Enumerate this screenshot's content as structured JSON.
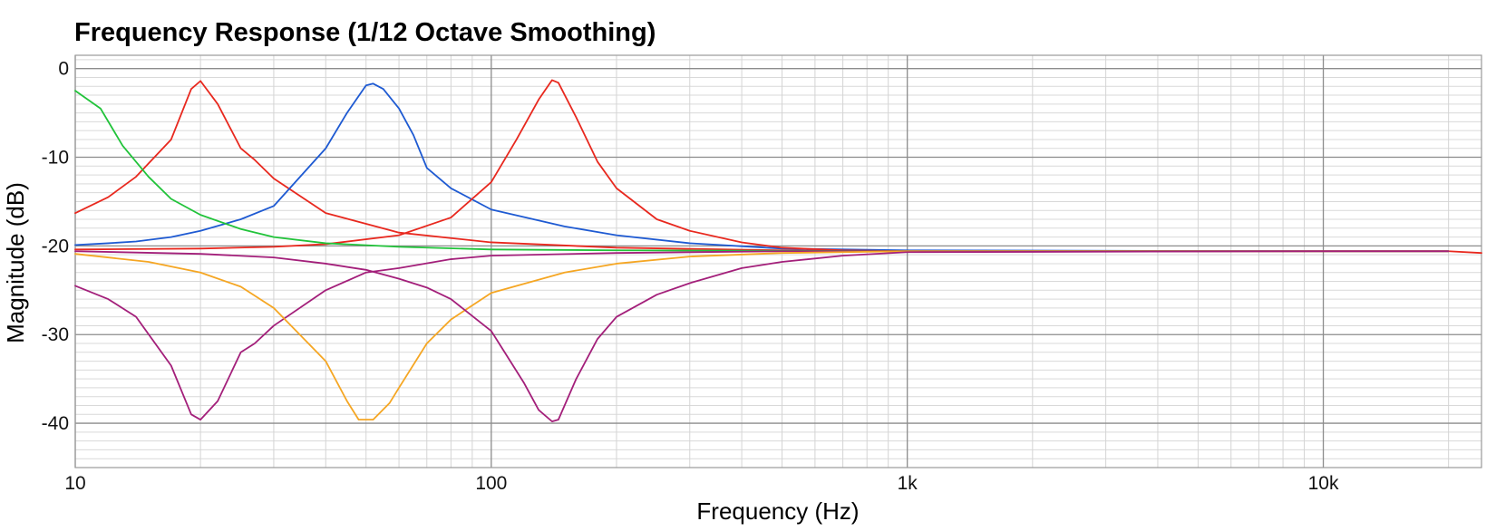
{
  "chart_data": {
    "type": "line",
    "title": "Frequency Response (1/12 Octave Smoothing)",
    "xlabel": "Frequency (Hz)",
    "ylabel": "Magnitude (dB)",
    "xscale": "log",
    "xlim": [
      10,
      24000
    ],
    "ylim": [
      -45,
      1.5
    ],
    "grid": true,
    "legend": "none",
    "x_ticks": [
      {
        "value": 10,
        "label": "10"
      },
      {
        "value": 100,
        "label": "100"
      },
      {
        "value": 1000,
        "label": "1k"
      },
      {
        "value": 10000,
        "label": "10k"
      }
    ],
    "y_ticks": [
      {
        "value": 0,
        "label": "0"
      },
      {
        "value": -10,
        "label": "-10"
      },
      {
        "value": -20,
        "label": "-20"
      },
      {
        "value": -30,
        "label": "-30"
      },
      {
        "value": -40,
        "label": "-40"
      }
    ],
    "series": [
      {
        "color": "#e8281e",
        "x": [
          10,
          12,
          14,
          17,
          19,
          20,
          22,
          25,
          27,
          30,
          40,
          60,
          100,
          200,
          500,
          1000,
          10000,
          20000
        ],
        "y": [
          -16.3,
          -14.5,
          -12.2,
          -8,
          -2.3,
          -1.4,
          -4,
          -9,
          -10.3,
          -12.4,
          -16.3,
          -18.5,
          -19.6,
          -20.2,
          -20.5,
          -20.6,
          -20.6,
          -20.6
        ]
      },
      {
        "color": "#1e5ad2",
        "x": [
          10,
          12,
          14,
          17,
          20,
          25,
          30,
          40,
          45,
          50,
          52,
          55,
          60,
          65,
          70,
          80,
          100,
          150,
          200,
          300,
          500,
          1000,
          10000,
          20000
        ],
        "y": [
          -19.9,
          -19.7,
          -19.5,
          -19,
          -18.3,
          -17,
          -15.5,
          -9,
          -5,
          -1.9,
          -1.7,
          -2.3,
          -4.5,
          -7.5,
          -11.2,
          -13.5,
          -15.9,
          -17.8,
          -18.8,
          -19.7,
          -20.3,
          -20.5,
          -20.6,
          -20.6
        ]
      },
      {
        "color": "#e8281e",
        "x": [
          10,
          20,
          30,
          40,
          60,
          80,
          100,
          115,
          130,
          140,
          145,
          160,
          180,
          200,
          250,
          300,
          400,
          500,
          700,
          1000,
          10000,
          20000,
          24000
        ],
        "y": [
          -20.4,
          -20.3,
          -20.1,
          -19.8,
          -18.8,
          -16.8,
          -12.8,
          -8,
          -3.5,
          -1.3,
          -1.6,
          -5.5,
          -10.5,
          -13.5,
          -17,
          -18.3,
          -19.6,
          -20.2,
          -20.5,
          -20.6,
          -20.6,
          -20.6,
          -20.8
        ]
      },
      {
        "color": "#21c33a",
        "x": [
          10,
          11.5,
          13,
          15,
          17,
          20,
          25,
          30,
          40,
          60,
          100,
          200,
          1000,
          20000
        ],
        "y": [
          -2.5,
          -4.5,
          -8.7,
          -12.2,
          -14.7,
          -16.5,
          -18.1,
          -19,
          -19.7,
          -20.1,
          -20.4,
          -20.5,
          -20.6,
          -20.6
        ]
      },
      {
        "color": "#a31f7a",
        "x": [
          10,
          12,
          14,
          17,
          19,
          20,
          22,
          25,
          27,
          30,
          40,
          50,
          60,
          80,
          100,
          200,
          500,
          1000,
          10000,
          20000
        ],
        "y": [
          -24.5,
          -26,
          -28,
          -33.5,
          -39,
          -39.6,
          -37.5,
          -32,
          -31,
          -29,
          -25,
          -23,
          -22.5,
          -21.5,
          -21.1,
          -20.8,
          -20.6,
          -20.6,
          -20.6,
          -20.6
        ]
      },
      {
        "color": "#f5a623",
        "x": [
          10,
          15,
          20,
          25,
          30,
          40,
          45,
          48,
          52,
          57,
          60,
          70,
          80,
          100,
          150,
          200,
          300,
          500,
          1000,
          20000
        ],
        "y": [
          -20.9,
          -21.8,
          -23,
          -24.6,
          -27,
          -33,
          -37.5,
          -39.6,
          -39.6,
          -37.7,
          -36,
          -31,
          -28.3,
          -25.3,
          -23,
          -22,
          -21.2,
          -20.8,
          -20.6,
          -20.6
        ]
      },
      {
        "color": "#a31f7a",
        "x": [
          10,
          20,
          30,
          40,
          50,
          60,
          70,
          80,
          100,
          120,
          130,
          140,
          145,
          160,
          180,
          200,
          250,
          300,
          400,
          500,
          700,
          1000,
          10000,
          20000
        ],
        "y": [
          -20.6,
          -20.9,
          -21.3,
          -22,
          -22.7,
          -23.7,
          -24.7,
          -26,
          -29.6,
          -35.5,
          -38.5,
          -39.8,
          -39.6,
          -35,
          -30.5,
          -28,
          -25.5,
          -24.2,
          -22.5,
          -21.8,
          -21.1,
          -20.7,
          -20.6,
          -20.6
        ]
      }
    ]
  }
}
